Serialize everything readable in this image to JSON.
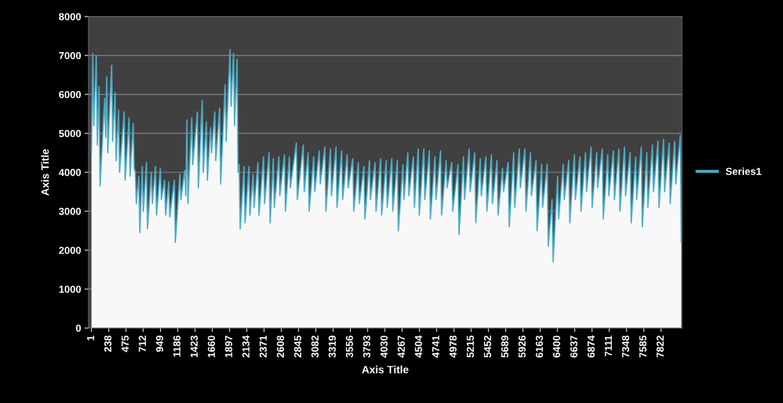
{
  "chart_data": {
    "type": "area",
    "xlabel": "Axis Title",
    "ylabel": "Axis Title",
    "xlim": [
      -40,
      8110
    ],
    "xticks": [
      1,
      238,
      475,
      712,
      949,
      1186,
      1423,
      1660,
      1897,
      2134,
      2371,
      2608,
      2845,
      3082,
      3319,
      3556,
      3793,
      4030,
      4267,
      4504,
      4741,
      4978,
      5215,
      5452,
      5689,
      5926,
      6163,
      6400,
      6637,
      6874,
      7111,
      7348,
      7585,
      7822
    ],
    "ylim": [
      0,
      8000
    ],
    "yticks": [
      0,
      1000,
      2000,
      3000,
      4000,
      5000,
      6000,
      7000,
      8000
    ],
    "grid": "y",
    "legend": "right",
    "series": [
      {
        "name": "Series1",
        "color": "#4bacc6",
        "x": [
          1,
          19,
          33,
          67,
          81,
          105,
          119,
          182,
          196,
          211,
          225,
          278,
          292,
          325,
          339,
          373,
          387,
          450,
          464,
          517,
          531,
          574,
          588,
          603,
          617,
          651,
          665,
          699,
          713,
          756,
          770,
          823,
          837,
          880,
          894,
          947,
          961,
          1005,
          1019,
          1062,
          1076,
          1139,
          1153,
          1215,
          1229,
          1282,
          1296,
          1311,
          1325,
          1378,
          1392,
          1455,
          1469,
          1522,
          1536,
          1579,
          1593,
          1636,
          1650,
          1694,
          1708,
          1761,
          1775,
          1837,
          1851,
          1904,
          1918,
          1952,
          1966,
          2000,
          2014,
          2029,
          2043,
          2096,
          2110,
          2163,
          2177,
          2220,
          2234,
          2287,
          2301,
          2364,
          2378,
          2440,
          2454,
          2498,
          2512,
          2574,
          2588,
          2651,
          2665,
          2718,
          2732,
          2814,
          2828,
          2909,
          2923,
          2976,
          2990,
          3053,
          3067,
          3129,
          3143,
          3206,
          3220,
          3283,
          3297,
          3359,
          3373,
          3436,
          3450,
          3512,
          3526,
          3589,
          3603,
          3665,
          3679,
          3742,
          3756,
          3818,
          3832,
          3895,
          3909,
          3972,
          3986,
          4048,
          4062,
          4125,
          4139,
          4201,
          4215,
          4278,
          4292,
          4345,
          4359,
          4421,
          4435,
          4488,
          4502,
          4565,
          4579,
          4641,
          4655,
          4718,
          4732,
          4795,
          4809,
          4871,
          4885,
          4948,
          4962,
          5034,
          5048,
          5110,
          5124,
          5187,
          5201,
          5264,
          5278,
          5340,
          5354,
          5417,
          5431,
          5493,
          5507,
          5570,
          5584,
          5646,
          5660,
          5723,
          5737,
          5799,
          5813,
          5876,
          5890,
          5953,
          5967,
          6029,
          6043,
          6106,
          6120,
          6182,
          6196,
          6259,
          6273,
          6326,
          6340,
          6402,
          6416,
          6479,
          6493,
          6555,
          6569,
          6632,
          6646,
          6709,
          6723,
          6785,
          6799,
          6862,
          6876,
          6938,
          6952,
          7015,
          7029,
          7091,
          7105,
          7168,
          7182,
          7244,
          7258,
          7321,
          7335,
          7398,
          7412,
          7474,
          7488,
          7551,
          7565,
          7627,
          7641,
          7704,
          7718,
          7780,
          7794,
          7857,
          7871,
          7934,
          7948,
          8010,
          8024,
          8087,
          8100
        ],
        "values": [
          4500,
          7050,
          5200,
          7000,
          4700,
          6200,
          3650,
          5900,
          4900,
          6450,
          4500,
          6750,
          4800,
          6050,
          4300,
          5600,
          4000,
          5550,
          3800,
          5400,
          3900,
          5250,
          4100,
          4000,
          3200,
          3900,
          2450,
          4150,
          3000,
          4250,
          2550,
          4000,
          3200,
          4150,
          2900,
          4100,
          3300,
          3800,
          2900,
          3750,
          2850,
          3800,
          2200,
          3950,
          3300,
          4050,
          3400,
          5350,
          3200,
          5400,
          4200,
          5550,
          3600,
          5850,
          4000,
          5300,
          3800,
          5150,
          4500,
          5550,
          4300,
          5650,
          3700,
          6250,
          4800,
          7150,
          5700,
          7050,
          5200,
          6900,
          4000,
          4200,
          2550,
          4150,
          2700,
          4150,
          2900,
          3950,
          3100,
          4250,
          2900,
          4400,
          3200,
          4500,
          2700,
          4350,
          3100,
          4400,
          3400,
          4450,
          3000,
          4400,
          3600,
          4750,
          3300,
          4700,
          3500,
          4500,
          3000,
          4400,
          3500,
          4550,
          3700,
          4650,
          3000,
          4600,
          3400,
          4650,
          3100,
          4550,
          3300,
          4450,
          3600,
          4350,
          3000,
          4250,
          3200,
          4150,
          2800,
          4300,
          3300,
          4250,
          3000,
          4350,
          2900,
          4300,
          3100,
          4350,
          3000,
          4300,
          2500,
          4200,
          3300,
          4500,
          3400,
          4400,
          3100,
          4600,
          2900,
          4600,
          3300,
          4550,
          2800,
          4400,
          3300,
          4550,
          2900,
          4300,
          3600,
          4250,
          3000,
          4200,
          2400,
          4400,
          3300,
          4600,
          3500,
          4500,
          2700,
          4350,
          3400,
          4400,
          3000,
          4450,
          3200,
          4300,
          2900,
          4100,
          3500,
          4250,
          2600,
          4500,
          3100,
          4600,
          3600,
          4600,
          3000,
          4500,
          3400,
          4300,
          2500,
          4200,
          3100,
          4200,
          2100,
          3300,
          1700,
          3900,
          2800,
          4200,
          3300,
          4300,
          2700,
          4450,
          3300,
          4400,
          3000,
          4500,
          3500,
          4650,
          3100,
          4500,
          3600,
          4600,
          2800,
          4450,
          3400,
          4550,
          3300,
          4600,
          3000,
          4650,
          3400,
          4500,
          2700,
          4400,
          3300,
          4650,
          2600,
          4500,
          3100,
          4700,
          3500,
          4800,
          3100,
          4850,
          3500,
          4750,
          3200,
          4800,
          3700,
          4950,
          2200
        ]
      }
    ]
  }
}
